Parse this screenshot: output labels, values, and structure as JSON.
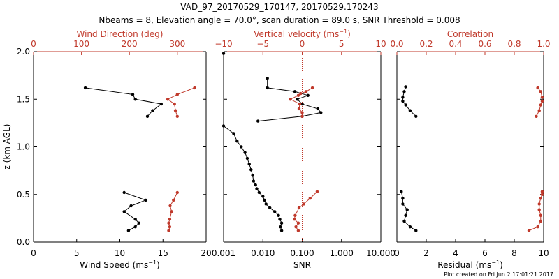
{
  "figure": {
    "title_line1": "VAD_97_20170529_170147, 20170529.170243",
    "title_line2": "Nbeams = 8, Elevation angle = 70.0°, scan duration = 89.0 s, SNR Threshold = 0.008",
    "footer": "Plot created on Fri Jun  2 17:01:21 2017",
    "colors": {
      "black": "#000000",
      "red": "#c0392b"
    }
  },
  "chart_data": [
    {
      "type": "line",
      "panel": "wind",
      "ylabel": "z (km AGL)",
      "ylim": [
        0,
        2.0
      ],
      "yticks": [
        "0.0",
        "0.5",
        "1.0",
        "1.5",
        "2.0"
      ],
      "xlabel_bottom": "Wind Speed (ms",
      "xlabel_bottom_sup": "−1",
      "xlabel_bottom_tail": ")",
      "xlim_bottom": [
        0,
        20
      ],
      "xticks_bottom": [
        "0",
        "5",
        "10",
        "15",
        "20"
      ],
      "xlabel_top": "Wind Direction (deg)",
      "xlim_top": [
        0,
        360
      ],
      "xticks_top": [
        "0",
        "100",
        "200",
        "300"
      ],
      "series": [
        {
          "axis": "bottom",
          "color": "#000000",
          "segments": [
            {
              "x": [
                11.0,
                11.8,
                12.2,
                11.8,
                10.5,
                11.3,
                13.0,
                10.5
              ],
              "y": [
                0.12,
                0.16,
                0.2,
                0.24,
                0.32,
                0.38,
                0.44,
                0.52
              ]
            },
            {
              "x": [
                13.2,
                13.8,
                14.8,
                11.8,
                11.5,
                6.0
              ],
              "y": [
                1.32,
                1.38,
                1.45,
                1.5,
                1.55,
                1.62
              ]
            }
          ]
        },
        {
          "axis": "top",
          "color": "#c0392b",
          "segments": [
            {
              "x": [
                282,
                284,
                282,
                284,
                288,
                285,
                292,
                300
              ],
              "y": [
                0.12,
                0.16,
                0.2,
                0.24,
                0.32,
                0.38,
                0.44,
                0.52
              ]
            },
            {
              "x": [
                300,
                296,
                294,
                280,
                300,
                336
              ],
              "y": [
                1.32,
                1.38,
                1.45,
                1.5,
                1.55,
                1.62
              ]
            }
          ]
        }
      ]
    },
    {
      "type": "line",
      "panel": "vertical",
      "xlabel_bottom": "SNR",
      "xscale_bottom": "log",
      "xlim_bottom": [
        0.001,
        10.0
      ],
      "xticks_bottom": [
        "0.001",
        "0.010",
        "0.100",
        "1.000",
        "10.000"
      ],
      "xlabel_top": "Vertical velocity (ms",
      "xlabel_top_sup": "−1",
      "xlabel_top_tail": ")",
      "xlim_top": [
        -10,
        10
      ],
      "xticks_top": [
        "−10",
        "−5",
        "0",
        "5",
        "10"
      ],
      "reference_line": {
        "axis": "top",
        "x": 0,
        "style": "dotted",
        "color": "#c0392b"
      },
      "series": [
        {
          "axis": "bottom",
          "color": "#000000",
          "segments": [
            {
              "x": [
                0.03,
                0.028,
                0.03,
                0.027,
                0.025,
                0.02,
                0.015,
                0.012,
                0.011,
                0.01,
                0.008,
                0.007,
                0.0065,
                0.0058,
                0.0055,
                0.005,
                0.0045,
                0.004,
                0.0035,
                0.0028,
                0.0022,
                0.0018,
                0.001
              ],
              "y": [
                0.12,
                0.16,
                0.2,
                0.24,
                0.28,
                0.32,
                0.36,
                0.4,
                0.44,
                0.48,
                0.52,
                0.56,
                0.6,
                0.64,
                0.7,
                0.76,
                0.82,
                0.88,
                0.94,
                1.0,
                1.06,
                1.14,
                1.22
              ]
            },
            {
              "x": [
                0.0075,
                0.1,
                0.3,
                0.25,
                0.1,
                0.075,
                0.14,
                0.065,
                0.013,
                0.013
              ],
              "y": [
                1.27,
                1.32,
                1.36,
                1.4,
                1.45,
                1.5,
                1.54,
                1.58,
                1.62,
                1.72
              ]
            },
            {
              "x": [
                0.001
              ],
              "y": [
                1.98
              ]
            }
          ]
        },
        {
          "axis": "top",
          "color": "#c0392b",
          "segments": [
            {
              "x": [
                -0.5,
                -0.8,
                -0.5,
                -1.0,
                -0.9,
                -0.4,
                0.2,
                1.0,
                1.9
              ],
              "y": [
                0.12,
                0.16,
                0.2,
                0.24,
                0.28,
                0.36,
                0.4,
                0.46,
                0.53
              ]
            },
            {
              "x": [
                0.0,
                0.0,
                -0.4,
                -0.3,
                -1.5,
                -0.5,
                -0.2,
                0.5,
                1.3
              ],
              "y": [
                1.32,
                1.36,
                1.4,
                1.45,
                1.5,
                1.54,
                1.56,
                1.58,
                1.62
              ]
            }
          ]
        }
      ]
    },
    {
      "type": "line",
      "panel": "residual",
      "xlabel_bottom": "Residual (ms",
      "xlabel_bottom_sup": "−1",
      "xlabel_bottom_tail": ")",
      "xlim_bottom": [
        0,
        10
      ],
      "xticks_bottom": [
        "0",
        "2",
        "4",
        "6",
        "8",
        "10"
      ],
      "xlabel_top": "Correlation",
      "xlim_top": [
        0,
        1.0
      ],
      "xticks_top": [
        "0.0",
        "0.2",
        "0.4",
        "0.6",
        "0.8",
        "1.0"
      ],
      "series": [
        {
          "axis": "bottom",
          "color": "#000000",
          "segments": [
            {
              "x": [
                1.3,
                0.9,
                0.5,
                0.6,
                0.7,
                0.4,
                0.4,
                0.3
              ],
              "y": [
                0.12,
                0.16,
                0.22,
                0.28,
                0.34,
                0.4,
                0.46,
                0.53
              ]
            },
            {
              "x": [
                1.3,
                0.9,
                0.6,
                0.4,
                0.4,
                0.5,
                0.6
              ],
              "y": [
                1.32,
                1.38,
                1.44,
                1.48,
                1.52,
                1.58,
                1.63
              ]
            }
          ]
        },
        {
          "axis": "top",
          "color": "#c0392b",
          "segments": [
            {
              "x": [
                0.9,
                0.96,
                0.98,
                0.98,
                0.97,
                0.97,
                0.98,
                0.99,
                0.99
              ],
              "y": [
                0.12,
                0.16,
                0.22,
                0.28,
                0.34,
                0.4,
                0.46,
                0.5,
                0.53
              ]
            },
            {
              "x": [
                0.95,
                0.97,
                0.98,
                0.99,
                0.99,
                0.98,
                0.96
              ],
              "y": [
                1.32,
                1.38,
                1.44,
                1.48,
                1.52,
                1.58,
                1.62
              ]
            }
          ]
        }
      ]
    }
  ]
}
